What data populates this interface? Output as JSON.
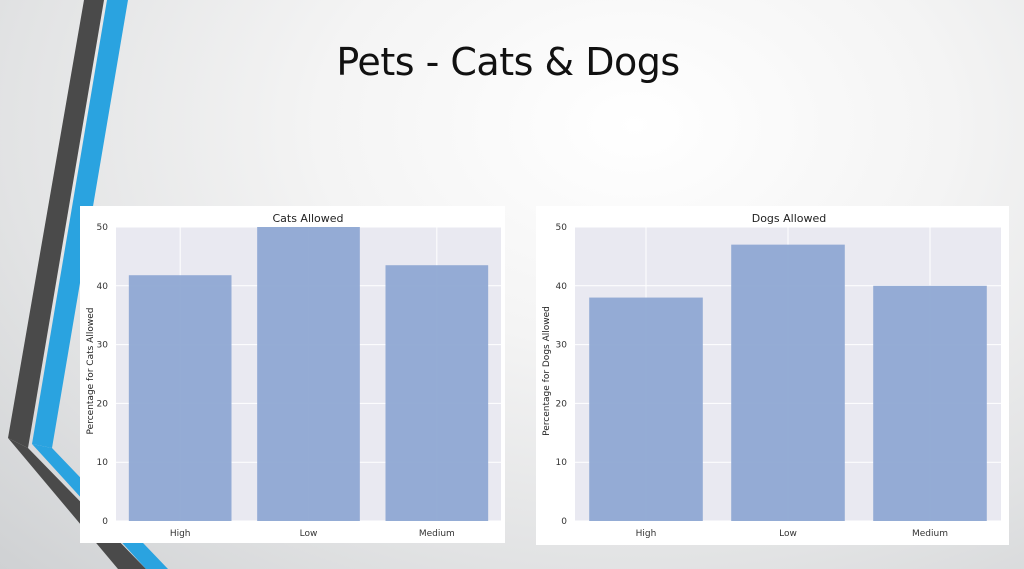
{
  "slide": {
    "title": "Pets - Cats & Dogs"
  },
  "colors": {
    "bar": "#8fa8d3",
    "plot_background": "#e9e9f1",
    "grid": "#ffffff",
    "accent_blue": "#2aa3e0",
    "accent_dark": "#4a4a4a"
  },
  "chart_data": [
    {
      "type": "bar",
      "title": "Cats Allowed",
      "xlabel": "",
      "ylabel": "Percentage for Cats Allowed",
      "categories": [
        "High",
        "Low",
        "Medium"
      ],
      "values": [
        41.8,
        50,
        43.5
      ],
      "ylim": [
        0,
        50
      ],
      "yticks": [
        0,
        10,
        20,
        30,
        40,
        50
      ],
      "grid": true
    },
    {
      "type": "bar",
      "title": "Dogs Allowed",
      "xlabel": "",
      "ylabel": "Percentage for Dogs Allowed",
      "categories": [
        "High",
        "Low",
        "Medium"
      ],
      "values": [
        38,
        47,
        40
      ],
      "ylim": [
        0,
        50
      ],
      "yticks": [
        0,
        10,
        20,
        30,
        40,
        50
      ],
      "grid": true
    }
  ]
}
